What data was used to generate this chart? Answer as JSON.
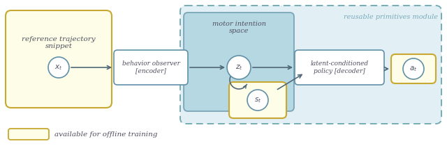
{
  "fig_width": 6.4,
  "fig_height": 2.1,
  "dpi": 100,
  "bg_color": "#ffffff",
  "yellow_fill": "#fefee8",
  "yellow_border": "#c8a832",
  "blue_fill": "#a8d0dc",
  "blue_fill_light": "#d0eaf0",
  "blue_border": "#6090a8",
  "teal_dashed_fill": "#ddeef4",
  "teal_dashed_border": "#60a0a8",
  "circle_fill": "#ffffff",
  "circle_border": "#6090a8",
  "box_fill": "#ffffff",
  "box_border": "#6090a8",
  "arrow_color": "#506878",
  "text_color": "#505060",
  "title_color": "#7aaabb",
  "legend_label": "available for offline training",
  "label_ref": "reference trajectory\nsnippet",
  "label_motor": "motor intention\nspace",
  "label_reusable": "reusable primitives module",
  "label_behavior": "behavior observer\n[encoder]",
  "label_latent": "latent-conditioned\npolicy [decoder]",
  "label_x": "$x_t$",
  "label_z": "$z_t$",
  "label_s": "$s_t$",
  "label_a": "$a_t$"
}
